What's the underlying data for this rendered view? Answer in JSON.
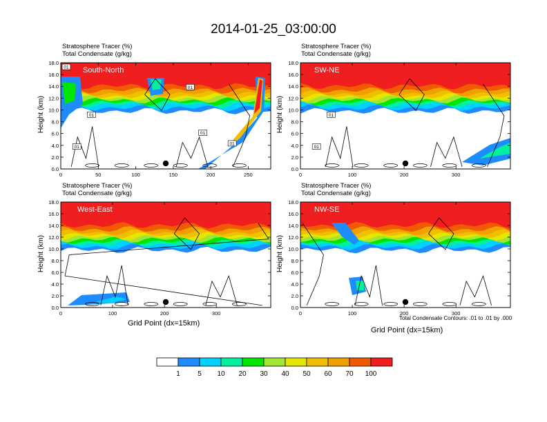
{
  "title": "2014-01-25_03:00:00",
  "panel_label_line1": "Stratosphere Tracer   (%)",
  "panel_label_line2": "Total Condensate   (g/kg)",
  "ylabel": "Height (km)",
  "xlabel": "Grid Point (dx=15km)",
  "contour_note": "Total Condensate Contours: .01 to .01 by .000",
  "colors": {
    "levels": [
      "#ffffff",
      "#1e8cff",
      "#00d2ff",
      "#00f0a0",
      "#00e600",
      "#a0e632",
      "#e6e600",
      "#f0c000",
      "#f0a000",
      "#f05a00",
      "#f01e1e"
    ]
  },
  "legend_labels": [
    "1",
    "5",
    "10",
    "20",
    "30",
    "40",
    "50",
    "60",
    "70",
    "100"
  ],
  "chart_data": [
    {
      "type": "heatmap",
      "name": "South-North",
      "panel_name": "South-North",
      "y_ticks": [
        "0.0",
        "2.0",
        "4.0",
        "6.0",
        "8.0",
        "10.0",
        "12.0",
        "14.0",
        "16.0",
        "18.0"
      ],
      "x_ticks": [
        "0",
        "50",
        "100",
        "150",
        "200",
        "250"
      ],
      "xlim": [
        0,
        280
      ],
      "ylim": [
        0,
        18
      ],
      "contour_labels": [
        "01",
        "01",
        "01",
        "01",
        "01",
        "01"
      ]
    },
    {
      "type": "heatmap",
      "name": "SW-NE",
      "panel_name": "SW-NE",
      "y_ticks": [
        "0.0",
        "2.0",
        "4.0",
        "6.0",
        "8.0",
        "10.0",
        "12.0",
        "14.0",
        "16.0",
        "18.0"
      ],
      "x_ticks": [
        "0",
        "100",
        "200",
        "300"
      ],
      "xlim": [
        0,
        405
      ],
      "ylim": [
        0,
        18
      ],
      "contour_labels": [
        "01",
        "01"
      ]
    },
    {
      "type": "heatmap",
      "name": "West-East",
      "panel_name": "West-East",
      "y_ticks": [
        "0.0",
        "2.0",
        "4.0",
        "6.0",
        "8.0",
        "10.0",
        "12.0",
        "14.0",
        "16.0",
        "18.0"
      ],
      "x_ticks": [
        "0",
        "100",
        "200",
        "300"
      ],
      "xlim": [
        0,
        405
      ],
      "ylim": [
        0,
        18
      ],
      "contour_labels": []
    },
    {
      "type": "heatmap",
      "name": "NW-SE",
      "panel_name": "NW-SE",
      "y_ticks": [
        "0.0",
        "2.0",
        "4.0",
        "6.0",
        "8.0",
        "10.0",
        "12.0",
        "14.0",
        "16.0",
        "18.0"
      ],
      "x_ticks": [
        "0",
        "100",
        "200",
        "300"
      ],
      "xlim": [
        0,
        405
      ],
      "ylim": [
        0,
        18
      ],
      "contour_labels": []
    }
  ]
}
